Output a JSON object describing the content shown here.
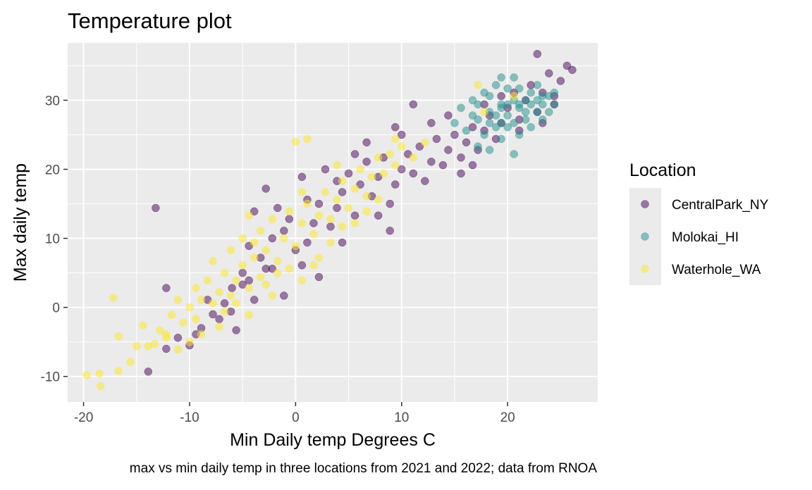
{
  "chart_data": {
    "type": "scatter",
    "title": "Temperature plot",
    "xlabel": "Min Daily temp Degrees C",
    "ylabel": "Max daily temp",
    "caption": "max vs min daily temp in three locations from 2021 and 2022; data from RNOA",
    "xlim": [
      -21.5,
      28.5
    ],
    "ylim": [
      -13.7,
      38.3
    ],
    "x_ticks": [
      -20,
      -10,
      0,
      10,
      20
    ],
    "y_ticks": [
      -10,
      0,
      10,
      20,
      30
    ],
    "x_tick_labels": [
      "-20",
      "-10",
      "0",
      "10",
      "20"
    ],
    "y_tick_labels": [
      "-10",
      "0",
      "10",
      "20",
      "30"
    ],
    "grid": true,
    "legend": {
      "title": "Location",
      "placement": "right"
    },
    "point_alpha": 0.5,
    "series": [
      {
        "name": "CentralPark_NY",
        "color": "#440154",
        "points": [
          [
            -13.2,
            14.4
          ],
          [
            -12.2,
            2.8
          ],
          [
            -13.9,
            -9.3
          ],
          [
            -12.2,
            -6.0
          ],
          [
            -10.0,
            -5.5
          ],
          [
            -8.9,
            -3.0
          ],
          [
            -7.8,
            -1.0
          ],
          [
            -6.7,
            0.6
          ],
          [
            -6.0,
            2.8
          ],
          [
            -5.0,
            5.0
          ],
          [
            -4.4,
            8.9
          ],
          [
            -3.3,
            7.2
          ],
          [
            -5.0,
            3.3
          ],
          [
            -3.9,
            1.1
          ],
          [
            -2.8,
            5.6
          ],
          [
            -2.2,
            10.0
          ],
          [
            -3.9,
            13.9
          ],
          [
            -2.8,
            17.2
          ],
          [
            -1.1,
            11.1
          ],
          [
            0.0,
            8.3
          ],
          [
            0.6,
            6.1
          ],
          [
            1.1,
            9.4
          ],
          [
            1.7,
            12.2
          ],
          [
            2.2,
            15.0
          ],
          [
            2.8,
            20.0
          ],
          [
            3.3,
            11.7
          ],
          [
            3.9,
            14.4
          ],
          [
            4.4,
            16.7
          ],
          [
            5.0,
            19.4
          ],
          [
            5.6,
            13.3
          ],
          [
            6.1,
            17.8
          ],
          [
            6.7,
            21.1
          ],
          [
            7.2,
            16.1
          ],
          [
            7.8,
            18.9
          ],
          [
            8.3,
            21.7
          ],
          [
            8.9,
            15.0
          ],
          [
            9.4,
            17.8
          ],
          [
            10.0,
            20.0
          ],
          [
            10.6,
            22.2
          ],
          [
            11.1,
            19.4
          ],
          [
            11.7,
            23.3
          ],
          [
            12.2,
            18.3
          ],
          [
            12.8,
            21.1
          ],
          [
            13.3,
            24.4
          ],
          [
            13.9,
            20.6
          ],
          [
            14.4,
            22.8
          ],
          [
            15.0,
            25.0
          ],
          [
            15.6,
            21.7
          ],
          [
            16.1,
            23.9
          ],
          [
            16.7,
            26.1
          ],
          [
            17.2,
            22.8
          ],
          [
            17.8,
            25.6
          ],
          [
            18.3,
            27.8
          ],
          [
            18.9,
            24.4
          ],
          [
            19.4,
            26.7
          ],
          [
            20.0,
            28.9
          ],
          [
            20.6,
            31.1
          ],
          [
            21.1,
            27.2
          ],
          [
            21.7,
            30.0
          ],
          [
            22.2,
            32.2
          ],
          [
            22.8,
            28.3
          ],
          [
            23.3,
            31.1
          ],
          [
            23.9,
            33.9
          ],
          [
            24.4,
            30.6
          ],
          [
            25.0,
            32.8
          ],
          [
            25.6,
            35.0
          ],
          [
            26.1,
            34.4
          ],
          [
            22.8,
            36.7
          ],
          [
            11.1,
            29.4
          ],
          [
            15.6,
            19.4
          ],
          [
            16.7,
            20.6
          ],
          [
            7.8,
            13.3
          ],
          [
            8.9,
            11.1
          ],
          [
            4.4,
            9.4
          ],
          [
            2.2,
            4.4
          ],
          [
            -1.1,
            1.7
          ],
          [
            -5.6,
            -3.3
          ],
          [
            -7.2,
            -1.7
          ],
          [
            -8.3,
            1.1
          ],
          [
            -1.7,
            14.4
          ],
          [
            -0.6,
            12.8
          ],
          [
            1.1,
            15.6
          ],
          [
            3.9,
            18.3
          ],
          [
            6.7,
            23.9
          ],
          [
            10.0,
            25.0
          ],
          [
            12.8,
            26.7
          ],
          [
            14.4,
            27.8
          ],
          [
            17.8,
            29.4
          ],
          [
            19.4,
            30.6
          ],
          [
            21.1,
            25.6
          ],
          [
            23.3,
            26.7
          ],
          [
            24.4,
            29.4
          ],
          [
            9.4,
            26.1
          ],
          [
            5.6,
            22.2
          ],
          [
            0.6,
            18.9
          ],
          [
            -2.2,
            5.6
          ],
          [
            -4.4,
            3.9
          ],
          [
            -6.1,
            -0.6
          ],
          [
            -9.4,
            -3.9
          ],
          [
            -11.1,
            -4.4
          ]
        ]
      },
      {
        "name": "Molokai_HI",
        "color": "#21908C",
        "points": [
          [
            15.0,
            26.7
          ],
          [
            15.6,
            28.9
          ],
          [
            16.1,
            25.6
          ],
          [
            16.7,
            30.0
          ],
          [
            17.2,
            27.2
          ],
          [
            17.8,
            31.1
          ],
          [
            17.8,
            25.0
          ],
          [
            18.3,
            28.3
          ],
          [
            18.3,
            30.6
          ],
          [
            18.9,
            26.1
          ],
          [
            18.9,
            32.2
          ],
          [
            19.4,
            29.4
          ],
          [
            19.4,
            24.4
          ],
          [
            20.0,
            27.8
          ],
          [
            20.0,
            31.7
          ],
          [
            20.6,
            26.7
          ],
          [
            20.6,
            33.3
          ],
          [
            21.1,
            28.9
          ],
          [
            21.1,
            25.0
          ],
          [
            21.7,
            30.0
          ],
          [
            21.7,
            27.2
          ],
          [
            22.2,
            31.1
          ],
          [
            22.2,
            26.1
          ],
          [
            22.8,
            28.3
          ],
          [
            22.8,
            32.2
          ],
          [
            23.3,
            29.4
          ],
          [
            23.3,
            27.2
          ],
          [
            23.9,
            30.6
          ],
          [
            23.9,
            28.3
          ],
          [
            24.4,
            31.1
          ],
          [
            24.4,
            29.4
          ],
          [
            17.2,
            23.3
          ],
          [
            18.3,
            22.8
          ],
          [
            20.6,
            22.2
          ],
          [
            19.4,
            33.3
          ],
          [
            16.7,
            27.8
          ],
          [
            17.2,
            29.4
          ],
          [
            18.9,
            27.8
          ],
          [
            19.4,
            28.9
          ],
          [
            20.0,
            29.4
          ],
          [
            20.6,
            30.0
          ],
          [
            21.1,
            29.4
          ],
          [
            21.7,
            28.3
          ],
          [
            22.2,
            29.4
          ],
          [
            20.0,
            26.1
          ],
          [
            19.4,
            26.7
          ],
          [
            18.3,
            26.7
          ],
          [
            21.1,
            31.7
          ],
          [
            22.8,
            30.0
          ],
          [
            23.3,
            30.6
          ]
        ]
      },
      {
        "name": "Waterhole_WA",
        "color": "#FDE725",
        "points": [
          [
            -19.7,
            -9.8
          ],
          [
            -18.4,
            -11.4
          ],
          [
            -18.5,
            -9.6
          ],
          [
            -16.7,
            -9.2
          ],
          [
            -17.2,
            1.4
          ],
          [
            -16.7,
            -4.2
          ],
          [
            -15.6,
            -7.9
          ],
          [
            -14.4,
            -2.6
          ],
          [
            -13.3,
            -5.3
          ],
          [
            -12.8,
            -3.3
          ],
          [
            -12.2,
            -4.4
          ],
          [
            -11.7,
            -1.1
          ],
          [
            -11.1,
            -6.1
          ],
          [
            -10.6,
            -2.2
          ],
          [
            -10.0,
            0.0
          ],
          [
            -9.4,
            -1.7
          ],
          [
            -9.4,
            2.8
          ],
          [
            -8.9,
            1.1
          ],
          [
            -8.3,
            3.9
          ],
          [
            -7.8,
            0.6
          ],
          [
            -7.8,
            6.7
          ],
          [
            -7.2,
            2.2
          ],
          [
            -6.7,
            5.0
          ],
          [
            -6.1,
            1.7
          ],
          [
            -6.1,
            8.3
          ],
          [
            -5.6,
            3.9
          ],
          [
            -5.0,
            6.1
          ],
          [
            -5.0,
            10.0
          ],
          [
            -4.4,
            2.8
          ],
          [
            -3.9,
            7.2
          ],
          [
            -3.3,
            4.4
          ],
          [
            -3.3,
            11.1
          ],
          [
            -2.8,
            8.3
          ],
          [
            -2.2,
            12.8
          ],
          [
            -1.7,
            6.7
          ],
          [
            -1.1,
            10.0
          ],
          [
            -0.6,
            13.9
          ],
          [
            0.0,
            8.9
          ],
          [
            0.0,
            24.0
          ],
          [
            1.1,
            24.4
          ],
          [
            0.6,
            12.2
          ],
          [
            1.1,
            15.0
          ],
          [
            1.7,
            10.6
          ],
          [
            2.2,
            13.3
          ],
          [
            2.8,
            16.7
          ],
          [
            3.3,
            12.8
          ],
          [
            3.9,
            15.6
          ],
          [
            4.4,
            18.3
          ],
          [
            5.0,
            14.4
          ],
          [
            5.6,
            17.2
          ],
          [
            6.1,
            20.0
          ],
          [
            6.7,
            16.1
          ],
          [
            7.2,
            18.9
          ],
          [
            7.8,
            21.7
          ],
          [
            8.3,
            19.4
          ],
          [
            8.9,
            22.2
          ],
          [
            9.4,
            20.6
          ],
          [
            10.0,
            23.3
          ],
          [
            11.1,
            21.7
          ],
          [
            12.2,
            23.9
          ],
          [
            17.8,
            28.3
          ],
          [
            20.6,
            30.6
          ],
          [
            17.2,
            32.2
          ],
          [
            -13.9,
            -5.6
          ],
          [
            -11.1,
            1.1
          ],
          [
            -7.2,
            -2.8
          ],
          [
            -4.4,
            -1.1
          ],
          [
            -2.2,
            1.7
          ],
          [
            0.6,
            3.9
          ],
          [
            2.2,
            7.2
          ],
          [
            3.3,
            9.4
          ],
          [
            4.4,
            11.7
          ],
          [
            -6.7,
            -0.6
          ],
          [
            -8.9,
            -3.9
          ],
          [
            -2.8,
            3.3
          ],
          [
            -1.7,
            5.0
          ],
          [
            1.7,
            6.1
          ],
          [
            5.6,
            12.2
          ],
          [
            6.7,
            13.9
          ],
          [
            7.8,
            15.6
          ],
          [
            -4.4,
            13.3
          ],
          [
            -3.9,
            9.4
          ],
          [
            -0.6,
            5.6
          ],
          [
            0.6,
            16.7
          ],
          [
            3.9,
            20.6
          ],
          [
            9.4,
            24.4
          ],
          [
            -5.6,
            0.6
          ],
          [
            -10.0,
            -5.0
          ],
          [
            -12.2,
            -3.9
          ],
          [
            -15.0,
            -5.6
          ]
        ]
      }
    ]
  }
}
